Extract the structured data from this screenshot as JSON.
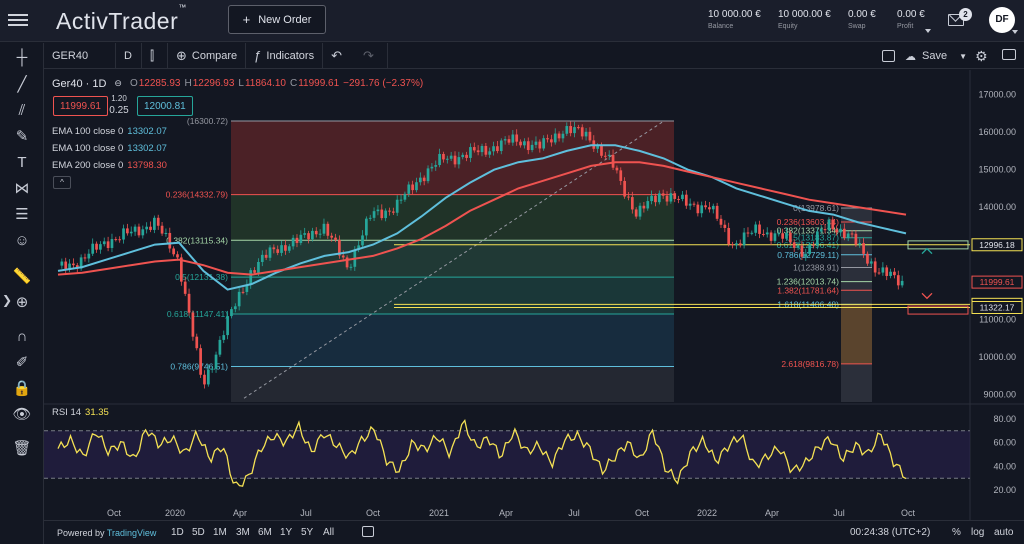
{
  "app": {
    "logo": "ActivTrader",
    "logo_mark": "™",
    "new_order_label": "New Order",
    "new_order_icon": "+"
  },
  "account": [
    {
      "value": "10 000.00 €",
      "label": "Balance"
    },
    {
      "value": "10 000.00 €",
      "label": "Equity"
    },
    {
      "value": "0.00 €",
      "label": "Swap"
    },
    {
      "value": "0.00 €",
      "label": "Profit"
    }
  ],
  "notifications": {
    "count": "2"
  },
  "user": {
    "initials": "DF"
  },
  "toolbar": {
    "symbol": "GER40",
    "interval": "D",
    "compare_label": "Compare",
    "indicators_label": "Indicators",
    "save_label": "Save"
  },
  "legend": {
    "symbol": "Ger40 · 1D",
    "o_key": "O",
    "o_val": "12285.93",
    "h_key": "H",
    "h_val": "12296.93",
    "l_key": "L",
    "l_val": "11864.10",
    "c_key": "C",
    "c_val": "11999.61",
    "change": "−291.76 (−2.37%)",
    "sell_price": "11999.61",
    "buy_price": "12000.81",
    "spread_top": "1.20",
    "spread_val": "0.25",
    "ema": [
      {
        "label": "EMA 100 close 0",
        "value": "13302.07",
        "color": "#5fbfdc"
      },
      {
        "label": "EMA 100 close 0",
        "value": "13302.07",
        "color": "#5fbfdc"
      },
      {
        "label": "EMA 200 close 0",
        "value": "13798.30",
        "color": "#ef5350"
      }
    ],
    "collapse_glyph": "^"
  },
  "rsi": {
    "label": "RSI 14",
    "value": "31.35"
  },
  "chart_data": {
    "type": "candlestick",
    "symbol": "GER40",
    "interval": "1D",
    "y_axis": {
      "range": [
        8800,
        17500
      ],
      "ticks": [
        17000,
        16000,
        15000,
        14000,
        13000,
        12000,
        11000,
        10000,
        9000
      ]
    },
    "x_axis": {
      "ticks": [
        "Oct",
        "2020",
        "Apr",
        "Jul",
        "Oct",
        "2021",
        "Apr",
        "Jul",
        "Oct",
        "2022",
        "Apr",
        "Jul",
        "Oct"
      ]
    },
    "series": [
      {
        "name": "Close (approx.)",
        "color": "#26a69a",
        "values": [
          12350,
          12600,
          13100,
          13300,
          13600,
          12600,
          9200,
          10900,
          12300,
          12900,
          13100,
          13500,
          12400,
          13800,
          14000,
          14800,
          15300,
          15400,
          15600,
          15800,
          15600,
          16100,
          15900,
          15100,
          13800,
          14400,
          14100,
          14000,
          13000,
          13400,
          13200,
          12800,
          13600,
          13100,
          12300,
          12000
        ]
      },
      {
        "name": "EMA 100",
        "color": "#5fbfdc",
        "values": [
          12300,
          12400,
          12600,
          12800,
          13000,
          13050,
          12300,
          11800,
          11950,
          12250,
          12500,
          12700,
          12800,
          13000,
          13300,
          13750,
          14250,
          14650,
          15000,
          15200,
          15300,
          15500,
          15650,
          15650,
          15500,
          15300,
          15000,
          14800,
          14500,
          14300,
          14100,
          13900,
          13800,
          13600,
          13450,
          13300
        ]
      },
      {
        "name": "EMA 200",
        "color": "#ef5350",
        "values": [
          12200,
          12250,
          12350,
          12450,
          12550,
          12600,
          12450,
          12250,
          12200,
          12300,
          12400,
          12500,
          12600,
          12700,
          12900,
          13150,
          13500,
          13900,
          14200,
          14500,
          14700,
          14900,
          15100,
          15200,
          15200,
          15100,
          14950,
          14800,
          14650,
          14500,
          14350,
          14200,
          14100,
          14000,
          13900,
          13800
        ]
      }
    ],
    "price_labels": [
      {
        "text": "12996.18",
        "color": "#f4e154"
      },
      {
        "text": "11999.61",
        "color": "#ef5350"
      },
      {
        "text": "11406.48",
        "color": "#f4e154"
      },
      {
        "text": "11322.17",
        "color": "#f4e154"
      }
    ],
    "fib_retracement": [
      {
        "level": "(16300.72)",
        "price": 16300.72,
        "color": "#9598a1"
      },
      {
        "level": "0.236(14332.79)",
        "price": 14332.79,
        "color": "#ef5350"
      },
      {
        "level": "0.382(13115.34)",
        "price": 13115.34,
        "color": "#a5d6a7"
      },
      {
        "level": "0.5(12131.38)",
        "price": 12131.38,
        "color": "#26a69a"
      },
      {
        "level": "0.618(11147.41)",
        "price": 11147.41,
        "color": "#26a69a"
      },
      {
        "level": "0.786(9746.51)",
        "price": 9746.51,
        "color": "#5fbfdc"
      }
    ],
    "fib_extension": [
      {
        "level": "0(13978.61)",
        "price": 13978.61,
        "color": "#9598a1"
      },
      {
        "level": "0.236(13603.44)",
        "price": 13603.44,
        "color": "#ef5350"
      },
      {
        "level": "0.382(13371.34)",
        "price": 13371.34,
        "color": "#a5d6a7"
      },
      {
        "level": "0.5(13183.87)",
        "price": 13183.87,
        "color": "#26a69a"
      },
      {
        "level": "0.618(12996.41)",
        "price": 12996.41,
        "color": "#26a69a"
      },
      {
        "level": "0.786(12729.11)",
        "price": 12729.11,
        "color": "#5fbfdc"
      },
      {
        "level": "1(12388.91)",
        "price": 12388.91,
        "color": "#9598a1"
      },
      {
        "level": "1.236(12013.74)",
        "price": 12013.74,
        "color": "#a5d6a7"
      },
      {
        "level": "1.382(11781.64)",
        "price": 11781.64,
        "color": "#ef5350"
      },
      {
        "level": "1.618(11406.48)",
        "price": 11406.48,
        "color": "#5fbfdc"
      },
      {
        "level": "2.618(9816.78)",
        "price": 9816.78,
        "color": "#ef5350"
      }
    ],
    "rsi": {
      "axis_ticks": [
        80,
        60,
        40,
        20
      ],
      "upper_band": 70,
      "lower_band": 30,
      "color": "#f4e154",
      "values": [
        55,
        62,
        48,
        70,
        52,
        60,
        45,
        72,
        58,
        64,
        50,
        68,
        46,
        58,
        22,
        30,
        55,
        66,
        60,
        74,
        52,
        68,
        58,
        48,
        62,
        72,
        44,
        36,
        60,
        54,
        66,
        50,
        78,
        56,
        64,
        48,
        70,
        52,
        58,
        42,
        62,
        66,
        55,
        36,
        48,
        60,
        45,
        70,
        38,
        28,
        52,
        62,
        44,
        58,
        66,
        40,
        48,
        56,
        36,
        42,
        55,
        64,
        46,
        58,
        50,
        68,
        44,
        31
      ]
    }
  },
  "bottom": {
    "powered_by": "Powered by",
    "powered_brand": "TradingView",
    "timeframes": [
      "1D",
      "5D",
      "1M",
      "3M",
      "6M",
      "1Y",
      "5Y",
      "All"
    ],
    "clock": "00:24:38 (UTC+2)",
    "percent": "%",
    "log": "log",
    "auto": "auto"
  }
}
